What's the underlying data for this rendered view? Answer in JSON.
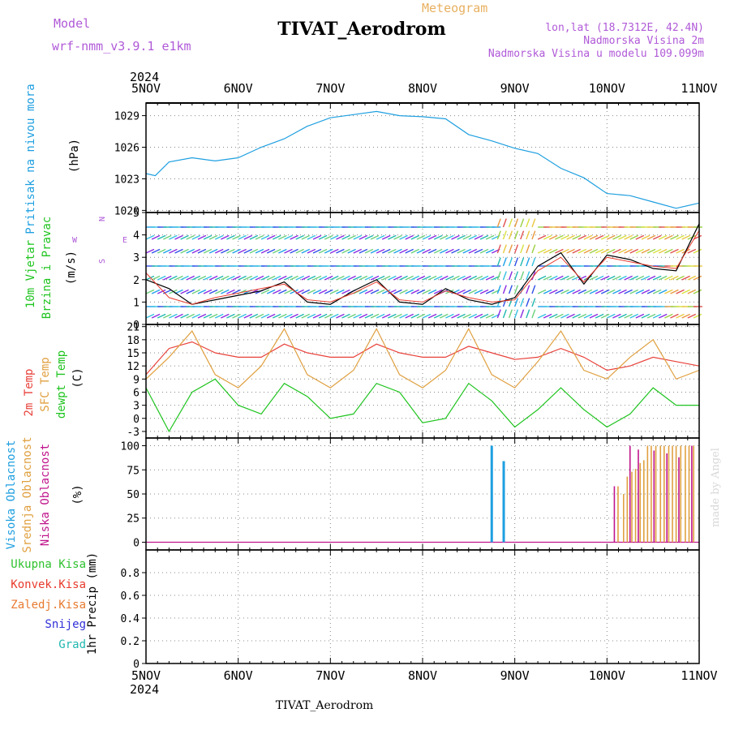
{
  "header": {
    "model_label": "Model",
    "model_name": "wrf-nmm_v3.9.1 e1km",
    "meteogram_label": "Meteogram",
    "station_title": "TIVAT_Aerodrom",
    "lonlat": "lon,lat (18.7312E, 42.4N)",
    "elevation": "Nadmorska Visina 2m",
    "model_elevation": "Nadmorska Visina u modelu 109.099m",
    "year": "2024",
    "footer_station": "TIVAT_Aerodrom",
    "watermark": "made by Angel"
  },
  "colors": {
    "pressure": "#1e9fe0",
    "wind_speed": "#000000",
    "wind_gust": "#e83b2d",
    "temp2m": "#e8413a",
    "sfc_temp": "#e0a040",
    "dewpoint": "#1fc41f",
    "cloud_high": "#1e9fe0",
    "cloud_mid": "#e0a040",
    "cloud_low": "#c0158c",
    "purple_text": "#b05ad8",
    "meteogram_text": "#e8b060"
  },
  "x_axis": {
    "ticks": [
      "5NOV",
      "6NOV",
      "7NOV",
      "8NOV",
      "9NOV",
      "10NOV",
      "11NOV"
    ],
    "year": "2024"
  },
  "chart_data": [
    {
      "type": "line",
      "name": "pressure-panel",
      "ylabel_1": "Pritisak na nivou mora",
      "ylabel_unit": "(hPa)",
      "yticks": [
        "1020",
        "1023",
        "1026",
        "1029"
      ],
      "ylim": [
        1019.8,
        1030.2
      ],
      "x": [
        0,
        0.1,
        0.25,
        0.5,
        0.75,
        1.0,
        1.25,
        1.5,
        1.75,
        2.0,
        2.25,
        2.5,
        2.75,
        3.0,
        3.25,
        3.5,
        3.75,
        4.0,
        4.25,
        4.5,
        4.75,
        5.0,
        5.25,
        5.5,
        5.75,
        6.0
      ],
      "series": [
        {
          "values": [
            1023.5,
            1023.3,
            1024.6,
            1025.0,
            1024.7,
            1025.0,
            1026.0,
            1026.8,
            1028.0,
            1028.8,
            1029.1,
            1029.4,
            1029.0,
            1028.9,
            1028.7,
            1027.2,
            1026.6,
            1025.9,
            1025.4,
            1024.0,
            1023.1,
            1021.6,
            1021.4,
            1020.8,
            1020.2,
            1020.7
          ]
        }
      ]
    },
    {
      "type": "line",
      "name": "wind-panel",
      "ylabel_1": "10m Vjetar",
      "ylabel_2": "Brzina i Pravac",
      "ylabel_unit": "(m/s)",
      "compass": {
        "w": "W",
        "e": "E",
        "n": "N",
        "s": "S"
      },
      "yticks": [
        "0",
        "1",
        "2",
        "3",
        "4",
        "5"
      ],
      "ylim": [
        0,
        5
      ],
      "x": [
        0,
        0.25,
        0.5,
        0.75,
        1.0,
        1.25,
        1.5,
        1.75,
        2.0,
        2.25,
        2.5,
        2.75,
        3.0,
        3.25,
        3.5,
        3.75,
        4.0,
        4.25,
        4.5,
        4.75,
        5.0,
        5.25,
        5.5,
        5.75,
        6.0
      ],
      "series": [
        {
          "values": [
            2.0,
            1.6,
            0.9,
            1.1,
            1.3,
            1.5,
            1.9,
            1.0,
            0.9,
            1.5,
            2.0,
            1.0,
            0.9,
            1.6,
            1.1,
            0.9,
            1.2,
            2.6,
            3.2,
            1.8,
            3.1,
            2.9,
            2.5,
            2.4,
            4.5
          ]
        },
        {
          "values": [
            2.3,
            1.2,
            0.9,
            1.2,
            1.4,
            1.6,
            1.8,
            1.1,
            1.0,
            1.4,
            1.9,
            1.1,
            1.0,
            1.5,
            1.2,
            1.0,
            1.1,
            2.4,
            3.0,
            1.9,
            3.0,
            2.8,
            2.6,
            2.5,
            4.2
          ]
        }
      ]
    },
    {
      "type": "line",
      "name": "temperature-panel",
      "ylabel_1": "2m Temp",
      "ylabel_2": "SFC Temp",
      "ylabel_3": "dewpt Temp",
      "ylabel_unit": "(C)",
      "yticks": [
        "-3",
        "0",
        "3",
        "6",
        "9",
        "12",
        "15",
        "18",
        "21"
      ],
      "ylim": [
        -4.5,
        21.5
      ],
      "x": [
        0,
        0.25,
        0.5,
        0.75,
        1.0,
        1.25,
        1.5,
        1.75,
        2.0,
        2.25,
        2.5,
        2.75,
        3.0,
        3.25,
        3.5,
        3.75,
        4.0,
        4.25,
        4.5,
        4.75,
        5.0,
        5.25,
        5.5,
        5.75,
        6.0
      ],
      "series": [
        {
          "values": [
            10,
            16,
            17.5,
            15,
            14,
            14,
            17,
            15,
            14,
            14,
            17,
            15,
            14,
            14,
            16.5,
            15,
            13.5,
            14,
            16,
            14,
            11,
            12,
            14,
            13,
            12
          ]
        },
        {
          "values": [
            9,
            14,
            20,
            10,
            7,
            12,
            20.5,
            10,
            7,
            11,
            20.5,
            10,
            7,
            11,
            20.5,
            10,
            7,
            13,
            20,
            11,
            9,
            14,
            18,
            9,
            11
          ]
        },
        {
          "values": [
            7,
            -3,
            6,
            9,
            3,
            1,
            8,
            5,
            0,
            1,
            8,
            6,
            -1,
            0,
            8,
            4,
            -2,
            2,
            7,
            2,
            -2,
            1,
            7,
            3,
            3
          ]
        }
      ]
    },
    {
      "type": "bar",
      "name": "cloud-panel",
      "ylabel_1": "Visoka Oblacnost",
      "ylabel_2": "Srednja Oblacnost",
      "ylabel_3": "Niska Oblacnost",
      "ylabel_unit": "(%)",
      "yticks": [
        "0",
        "25",
        "50",
        "75",
        "100"
      ],
      "ylim": [
        -8,
        108
      ],
      "series": [
        {
          "name_key": "high",
          "x": [
            3.75,
            3.88
          ],
          "values": [
            100,
            84
          ]
        },
        {
          "name_key": "mid",
          "x": [
            5.12,
            5.18,
            5.22,
            5.27,
            5.31,
            5.36,
            5.4,
            5.44,
            5.48,
            5.53,
            5.58,
            5.62,
            5.67,
            5.71,
            5.75,
            5.8,
            5.85,
            5.89,
            5.94
          ],
          "values": [
            58,
            50,
            68,
            73,
            76,
            82,
            85,
            100,
            100,
            100,
            100,
            100,
            100,
            100,
            100,
            100,
            100,
            100,
            100
          ]
        },
        {
          "name_key": "low",
          "x": [
            5.08,
            5.25,
            5.34,
            5.51,
            5.65,
            5.78,
            5.92
          ],
          "values": [
            58,
            100,
            96,
            95,
            92,
            88,
            100
          ]
        }
      ]
    },
    {
      "type": "bar",
      "name": "precip-panel",
      "ylabel_1": "Ukupna Kisa",
      "ylabel_2": "Konvek.Kisa",
      "ylabel_3": "Zaledj.Kisa",
      "ylabel_4": "Snijeg",
      "ylabel_5": "Grad",
      "ylabel_unit": "1hr Precip (mm)",
      "yticks": [
        "0",
        "0.2",
        "0.4",
        "0.6",
        "0.8"
      ],
      "ylim": [
        0,
        1.0
      ],
      "series": []
    }
  ]
}
